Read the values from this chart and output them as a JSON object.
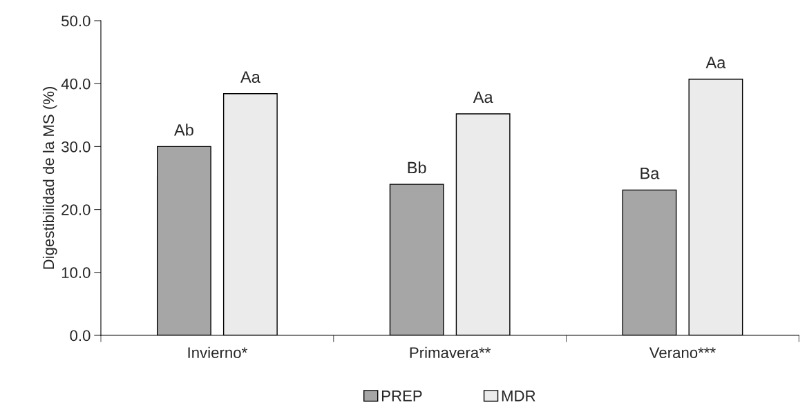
{
  "chart_data": {
    "type": "bar",
    "ylabel": "Digestibilidad de la MS (%)",
    "categories": [
      "Invierno*",
      "Primavera**",
      "Verano***"
    ],
    "series": [
      {
        "name": "PREP",
        "color": "#a6a6a6",
        "values": [
          30.0,
          24.0,
          23.1
        ],
        "value_labels": [
          "Ab",
          "Bb",
          "Ba"
        ]
      },
      {
        "name": "MDR",
        "color": "#ebebeb",
        "values": [
          38.4,
          35.2,
          40.7
        ],
        "value_labels": [
          "Aa",
          "Aa",
          "Aa"
        ]
      }
    ],
    "ylim": [
      0,
      50
    ],
    "yticks": [
      {
        "value": 0,
        "label": "0.0"
      },
      {
        "value": 10,
        "label": "10.0"
      },
      {
        "value": 20,
        "label": "20.0"
      },
      {
        "value": 30,
        "label": "30.0"
      },
      {
        "value": 40,
        "label": "40.0"
      },
      {
        "value": 50,
        "label": "50.0"
      }
    ],
    "grid": false,
    "legend": "bottom"
  }
}
